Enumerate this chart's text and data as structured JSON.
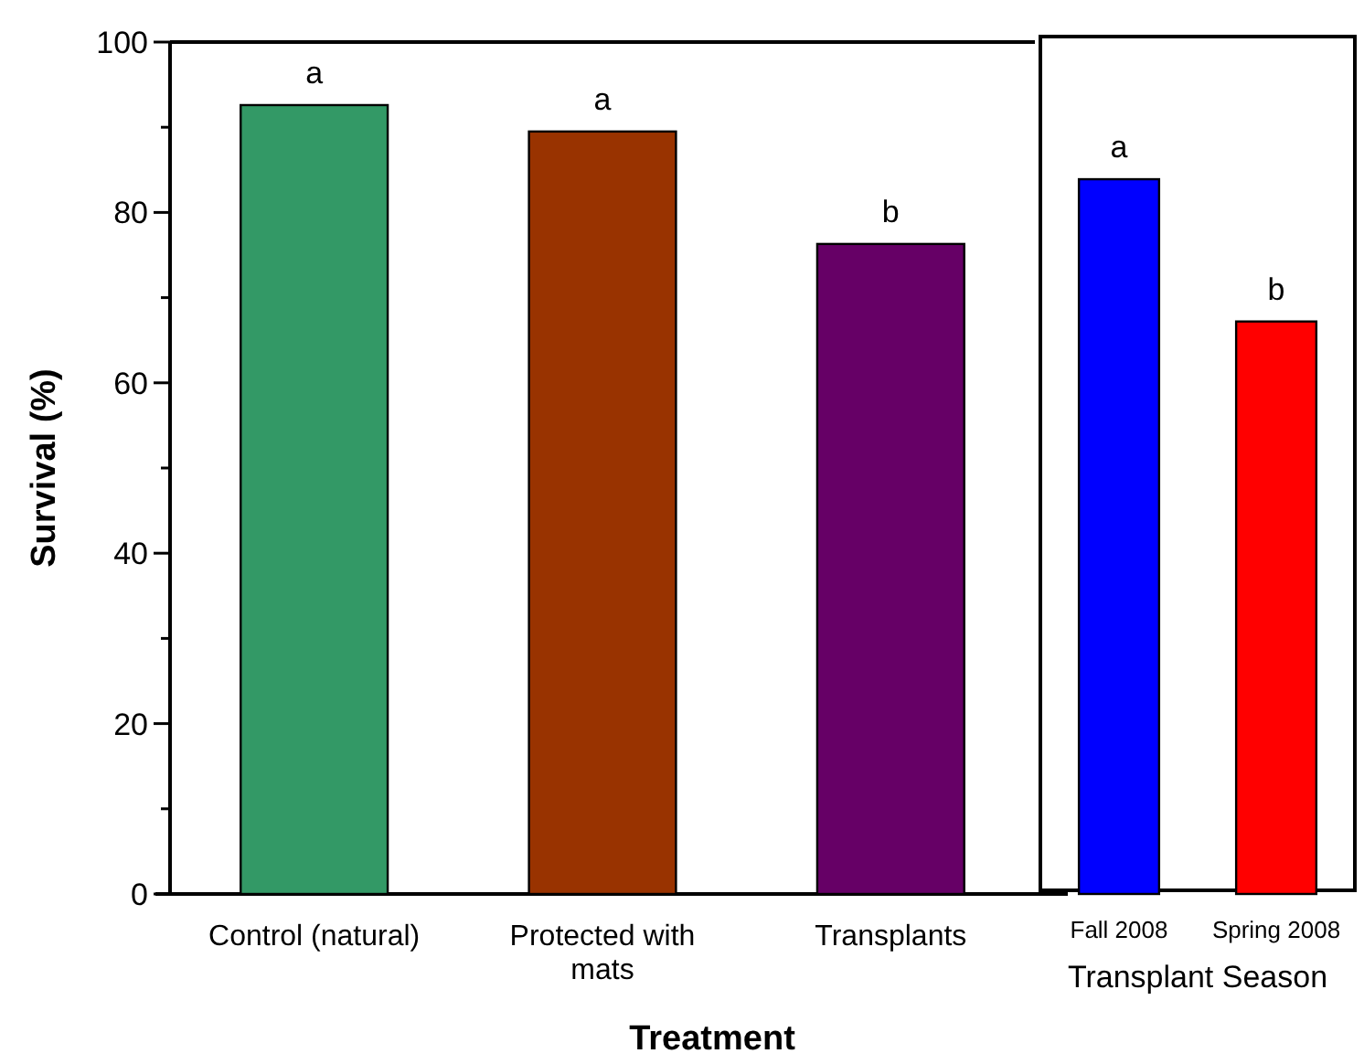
{
  "chart_data": [
    {
      "type": "bar",
      "xlabel": "Treatment",
      "ylabel": "Survival (%)",
      "categories": [
        "Control (natural)",
        "Protected with mats",
        "Transplants"
      ],
      "values": [
        92.6,
        89.5,
        76.3
      ],
      "colors": [
        "#339966",
        "#993300",
        "#660066"
      ],
      "ylim": [
        0,
        100
      ],
      "yticks": [
        0,
        {
          "value": 10,
          "label": null
        },
        20,
        {
          "value": 30,
          "label": null
        },
        40,
        {
          "value": 50,
          "label": null
        },
        60,
        {
          "value": 70,
          "label": null
        },
        80,
        {
          "value": 90,
          "label": null
        },
        100
      ],
      "annotations": [
        {
          "text": "a",
          "x": "Control (natural)",
          "y": 92.6
        },
        {
          "text": "a",
          "x": "Protected with mats",
          "y": 89.5
        },
        {
          "text": "b",
          "x": "Transplants",
          "y": 76.3
        }
      ]
    },
    {
      "type": "bar",
      "xlabel": "Transplant Season",
      "categories": [
        "Fall 2008",
        "Spring 2008"
      ],
      "values": [
        83.9,
        67.2
      ],
      "colors": [
        "#0000ff",
        "#ff0000"
      ],
      "ylim": [
        0,
        100
      ],
      "tick_labels": "x",
      "annotations": [
        {
          "text": "a",
          "x": "Fall 2008",
          "y": 83.9
        },
        {
          "text": "b",
          "x": "Spring 2008",
          "y": 67.2
        }
      ]
    }
  ]
}
